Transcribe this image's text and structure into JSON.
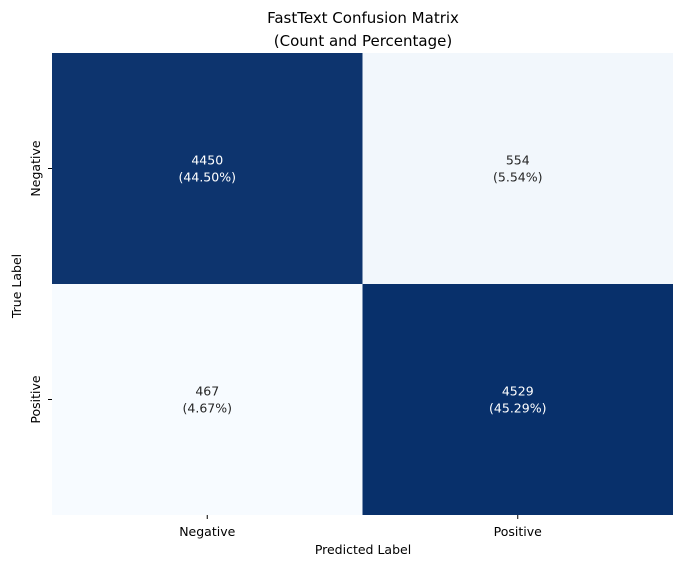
{
  "chart_data": {
    "type": "heatmap",
    "title": "FastText Confusion Matrix",
    "subtitle": "(Count and Percentage)",
    "xlabel": "Predicted Label",
    "ylabel": "True Label",
    "x_categories": [
      "Negative",
      "Positive"
    ],
    "y_categories": [
      "Negative",
      "Positive"
    ],
    "values": [
      [
        4450,
        554
      ],
      [
        467,
        4529
      ]
    ],
    "percentages": [
      "44.50%",
      "5.54%",
      "4.67%",
      "45.29%"
    ],
    "annotations": [
      [
        "4450",
        "(44.50%)"
      ],
      [
        "554",
        "(5.54%)"
      ],
      [
        "467",
        "(4.67%)"
      ],
      [
        "4529",
        "(45.29%)"
      ]
    ],
    "colormap": "Blues",
    "colorbar": false,
    "grid": false
  },
  "colors": {
    "high": "#08306b",
    "low": "#f7fbff",
    "text_on_dark": "#ffffff",
    "text_on_light": "#262626"
  }
}
